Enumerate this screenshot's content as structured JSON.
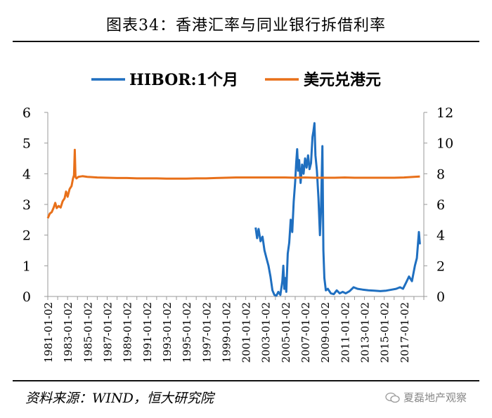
{
  "title": "图表34：香港汇率与同业银行拆借利率",
  "source": "资料来源：WIND，恒大研究院",
  "watermark": "夏磊地产观察",
  "chart_data": {
    "type": "line",
    "x_tick_labels": [
      "1981-01-02",
      "1983-01-02",
      "1985-01-02",
      "1987-01-02",
      "1989-01-02",
      "1991-01-02",
      "1993-01-02",
      "1995-01-02",
      "1997-01-02",
      "1999-01-02",
      "2001-01-02",
      "2003-01-02",
      "2005-01-02",
      "2007-01-02",
      "2009-01-02",
      "2011-01-02",
      "2013-01-02",
      "2015-01-02",
      "2017-01-02"
    ],
    "xlim": [
      1981.0,
      2019.0
    ],
    "left_axis": {
      "ylim": [
        0,
        6
      ],
      "ticks": [
        "0",
        "1",
        "2",
        "3",
        "4",
        "5",
        "6"
      ]
    },
    "right_axis": {
      "ylim": [
        0,
        12
      ],
      "ticks": [
        "0",
        "2",
        "4",
        "6",
        "8",
        "10",
        "12"
      ]
    },
    "legend_position": "top-center",
    "grid": false,
    "series": [
      {
        "name": "HIBOR:1个月",
        "axis": "right",
        "color": "#1f6fc0",
        "points": [
          [
            2002.0,
            4.5
          ],
          [
            2002.15,
            3.8
          ],
          [
            2002.3,
            4.4
          ],
          [
            2002.5,
            3.6
          ],
          [
            2002.7,
            3.9
          ],
          [
            2002.9,
            3.0
          ],
          [
            2003.1,
            2.5
          ],
          [
            2003.3,
            2.0
          ],
          [
            2003.5,
            1.3
          ],
          [
            2003.7,
            0.4
          ],
          [
            2003.9,
            0.1
          ],
          [
            2004.1,
            0.05
          ],
          [
            2004.3,
            0.3
          ],
          [
            2004.5,
            0.1
          ],
          [
            2004.7,
            1.0
          ],
          [
            2004.8,
            2.0
          ],
          [
            2004.9,
            0.5
          ],
          [
            2005.0,
            1.2
          ],
          [
            2005.1,
            0.3
          ],
          [
            2005.25,
            2.8
          ],
          [
            2005.4,
            3.5
          ],
          [
            2005.55,
            5.0
          ],
          [
            2005.7,
            4.2
          ],
          [
            2005.85,
            6.2
          ],
          [
            2006.0,
            7.5
          ],
          [
            2006.1,
            8.7
          ],
          [
            2006.2,
            9.6
          ],
          [
            2006.3,
            8.2
          ],
          [
            2006.4,
            8.9
          ],
          [
            2006.55,
            7.4
          ],
          [
            2006.7,
            8.6
          ],
          [
            2006.85,
            8.0
          ],
          [
            2007.0,
            9.0
          ],
          [
            2007.15,
            8.4
          ],
          [
            2007.3,
            9.2
          ],
          [
            2007.45,
            8.3
          ],
          [
            2007.6,
            8.7
          ],
          [
            2007.75,
            10.4
          ],
          [
            2007.85,
            10.8
          ],
          [
            2007.95,
            11.3
          ],
          [
            2008.05,
            9.2
          ],
          [
            2008.2,
            8.2
          ],
          [
            2008.35,
            6.4
          ],
          [
            2008.5,
            4.0
          ],
          [
            2008.6,
            5.5
          ],
          [
            2008.75,
            9.8
          ],
          [
            2008.85,
            3.0
          ],
          [
            2008.95,
            1.2
          ],
          [
            2009.1,
            0.4
          ],
          [
            2009.3,
            0.5
          ],
          [
            2009.6,
            0.2
          ],
          [
            2009.9,
            0.15
          ],
          [
            2010.2,
            0.4
          ],
          [
            2010.5,
            0.2
          ],
          [
            2010.8,
            0.3
          ],
          [
            2011.1,
            0.2
          ],
          [
            2011.5,
            0.35
          ],
          [
            2011.9,
            0.6
          ],
          [
            2012.3,
            0.5
          ],
          [
            2012.8,
            0.45
          ],
          [
            2013.4,
            0.4
          ],
          [
            2014.0,
            0.38
          ],
          [
            2014.6,
            0.35
          ],
          [
            2015.2,
            0.38
          ],
          [
            2015.8,
            0.45
          ],
          [
            2016.2,
            0.5
          ],
          [
            2016.6,
            0.6
          ],
          [
            2016.9,
            0.5
          ],
          [
            2017.2,
            0.9
          ],
          [
            2017.5,
            1.3
          ],
          [
            2017.8,
            1.0
          ],
          [
            2018.1,
            2.0
          ],
          [
            2018.3,
            2.5
          ],
          [
            2018.5,
            4.2
          ],
          [
            2018.6,
            3.4
          ]
        ]
      },
      {
        "name": "美元兑港元",
        "axis": "left",
        "color": "#e8701a",
        "points": [
          [
            1981.0,
            2.55
          ],
          [
            1981.2,
            2.7
          ],
          [
            1981.4,
            2.75
          ],
          [
            1981.6,
            2.9
          ],
          [
            1981.75,
            3.05
          ],
          [
            1981.9,
            2.88
          ],
          [
            1982.1,
            2.95
          ],
          [
            1982.3,
            2.9
          ],
          [
            1982.5,
            3.1
          ],
          [
            1982.7,
            3.2
          ],
          [
            1982.85,
            3.42
          ],
          [
            1983.0,
            3.25
          ],
          [
            1983.2,
            3.5
          ],
          [
            1983.4,
            3.6
          ],
          [
            1983.55,
            3.85
          ],
          [
            1983.65,
            3.95
          ],
          [
            1983.73,
            4.78
          ],
          [
            1983.8,
            3.9
          ],
          [
            1983.9,
            3.85
          ],
          [
            1984.1,
            3.9
          ],
          [
            1984.5,
            3.92
          ],
          [
            1985.0,
            3.9
          ],
          [
            1986.0,
            3.88
          ],
          [
            1987.0,
            3.87
          ],
          [
            1988.0,
            3.86
          ],
          [
            1989.0,
            3.86
          ],
          [
            1990.0,
            3.85
          ],
          [
            1991.0,
            3.85
          ],
          [
            1992.0,
            3.85
          ],
          [
            1993.0,
            3.84
          ],
          [
            1994.0,
            3.84
          ],
          [
            1995.0,
            3.84
          ],
          [
            1996.0,
            3.85
          ],
          [
            1997.0,
            3.85
          ],
          [
            1998.0,
            3.86
          ],
          [
            1999.0,
            3.87
          ],
          [
            2000.0,
            3.88
          ],
          [
            2001.0,
            3.88
          ],
          [
            2002.0,
            3.88
          ],
          [
            2003.0,
            3.88
          ],
          [
            2004.0,
            3.88
          ],
          [
            2005.0,
            3.88
          ],
          [
            2006.0,
            3.87
          ],
          [
            2007.0,
            3.88
          ],
          [
            2008.0,
            3.87
          ],
          [
            2009.0,
            3.87
          ],
          [
            2010.0,
            3.87
          ],
          [
            2011.0,
            3.88
          ],
          [
            2012.0,
            3.87
          ],
          [
            2013.0,
            3.87
          ],
          [
            2014.0,
            3.87
          ],
          [
            2015.0,
            3.87
          ],
          [
            2016.0,
            3.87
          ],
          [
            2017.0,
            3.88
          ],
          [
            2018.0,
            3.9
          ],
          [
            2018.6,
            3.91
          ]
        ]
      }
    ]
  }
}
